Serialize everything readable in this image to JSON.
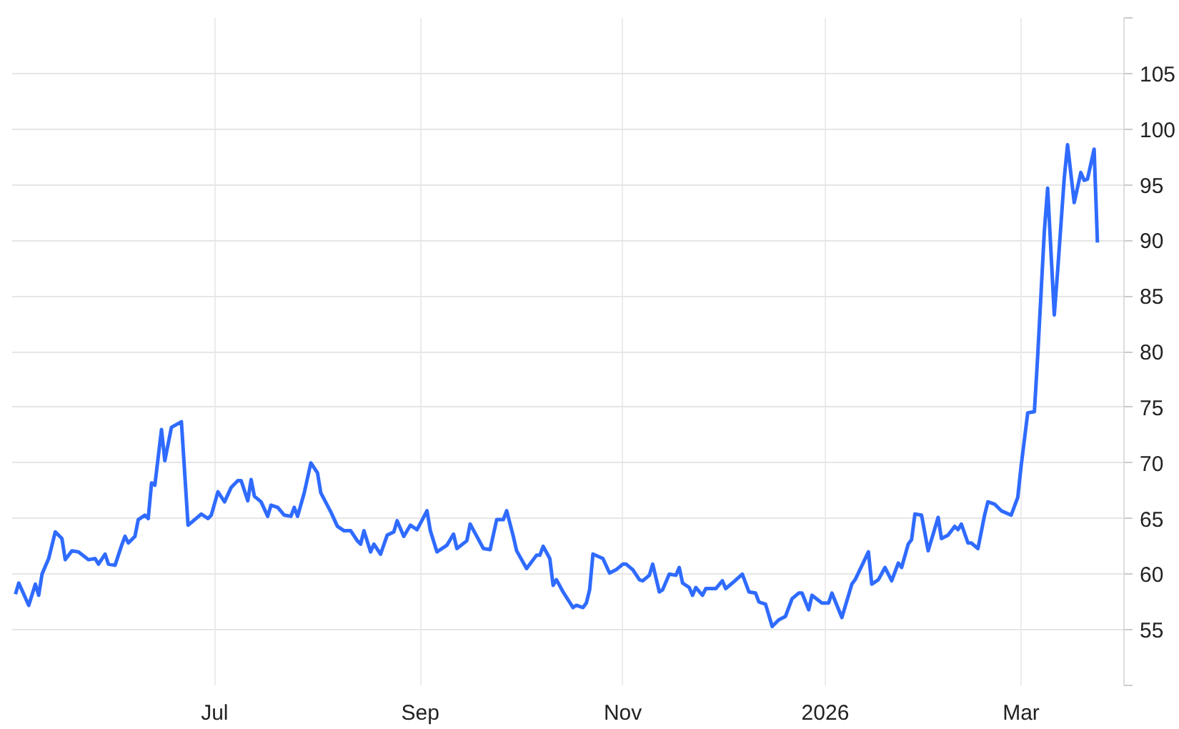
{
  "chart_data": {
    "type": "line",
    "grid": true,
    "line_style": "solid",
    "xlim": [
      "2025-05-01",
      "2026-04-01"
    ],
    "xticks": [
      {
        "value": "2025-07-01",
        "label": "Jul"
      },
      {
        "value": "2025-09-01",
        "label": "Sep"
      },
      {
        "value": "2025-11-01",
        "label": "Nov"
      },
      {
        "value": "2026-01-01",
        "label": "2026"
      },
      {
        "value": "2026-03-01",
        "label": "Mar"
      }
    ],
    "ylim": [
      50,
      110
    ],
    "yticks": [
      {
        "value": 50,
        "label": null
      },
      55,
      60,
      65,
      70,
      75,
      80,
      85,
      90,
      95,
      100,
      105,
      {
        "value": 110,
        "label": null
      }
    ],
    "x": [
      "2025-05-02",
      "2025-05-03",
      "2025-05-06",
      "2025-05-08",
      "2025-05-09",
      "2025-05-10",
      "2025-05-12",
      "2025-05-14",
      "2025-05-16",
      "2025-05-17",
      "2025-05-19",
      "2025-05-21",
      "2025-05-24",
      "2025-05-26",
      "2025-05-27",
      "2025-05-29",
      "2025-05-30",
      "2025-06-01",
      "2025-06-03",
      "2025-06-04",
      "2025-06-05",
      "2025-06-07",
      "2025-06-08",
      "2025-06-10",
      "2025-06-11",
      "2025-06-12",
      "2025-06-13",
      "2025-06-15",
      "2025-06-16",
      "2025-06-18",
      "2025-06-21",
      "2025-06-23",
      "2025-06-25",
      "2025-06-27",
      "2025-06-29",
      "2025-06-30",
      "2025-07-02",
      "2025-07-04",
      "2025-07-06",
      "2025-07-08",
      "2025-07-09",
      "2025-07-11",
      "2025-07-12",
      "2025-07-13",
      "2025-07-15",
      "2025-07-17",
      "2025-07-18",
      "2025-07-20",
      "2025-07-22",
      "2025-07-24",
      "2025-07-25",
      "2025-07-26",
      "2025-07-28",
      "2025-07-30",
      "2025-08-01",
      "2025-08-02",
      "2025-08-05",
      "2025-08-07",
      "2025-08-09",
      "2025-08-11",
      "2025-08-13",
      "2025-08-14",
      "2025-08-15",
      "2025-08-17",
      "2025-08-18",
      "2025-08-20",
      "2025-08-22",
      "2025-08-24",
      "2025-08-25",
      "2025-08-27",
      "2025-08-29",
      "2025-08-31",
      "2025-09-03",
      "2025-09-04",
      "2025-09-06",
      "2025-09-09",
      "2025-09-11",
      "2025-09-12",
      "2025-09-15",
      "2025-09-16",
      "2025-09-18",
      "2025-09-20",
      "2025-09-22",
      "2025-09-24",
      "2025-09-26",
      "2025-09-27",
      "2025-09-29",
      "2025-09-30",
      "2025-10-03",
      "2025-10-06",
      "2025-10-07",
      "2025-10-08",
      "2025-10-10",
      "2025-10-11",
      "2025-10-12",
      "2025-10-14",
      "2025-10-17",
      "2025-10-18",
      "2025-10-20",
      "2025-10-21",
      "2025-10-22",
      "2025-10-23",
      "2025-10-26",
      "2025-10-28",
      "2025-10-30",
      "2025-11-01",
      "2025-11-02",
      "2025-11-04",
      "2025-11-06",
      "2025-11-07",
      "2025-11-09",
      "2025-11-10",
      "2025-11-12",
      "2025-11-13",
      "2025-11-15",
      "2025-11-17",
      "2025-11-18",
      "2025-11-19",
      "2025-11-21",
      "2025-11-22",
      "2025-11-23",
      "2025-11-25",
      "2025-11-26",
      "2025-11-29",
      "2025-12-01",
      "2025-12-02",
      "2025-12-04",
      "2025-12-07",
      "2025-12-09",
      "2025-12-11",
      "2025-12-12",
      "2025-12-14",
      "2025-12-16",
      "2025-12-18",
      "2025-12-20",
      "2025-12-22",
      "2025-12-24",
      "2025-12-25",
      "2025-12-27",
      "2025-12-28",
      "2025-12-31",
      "2026-01-02",
      "2026-01-03",
      "2026-01-06",
      "2026-01-09",
      "2026-01-10",
      "2026-01-14",
      "2026-01-15",
      "2026-01-17",
      "2026-01-19",
      "2026-01-21",
      "2026-01-23",
      "2026-01-24",
      "2026-01-26",
      "2026-01-27",
      "2026-01-28",
      "2026-01-30",
      "2026-02-01",
      "2026-02-04",
      "2026-02-05",
      "2026-02-07",
      "2026-02-09",
      "2026-02-10",
      "2026-02-11",
      "2026-02-13",
      "2026-02-14",
      "2026-02-16",
      "2026-02-18",
      "2026-02-19",
      "2026-02-21",
      "2026-02-23",
      "2026-02-26",
      "2026-02-28",
      "2026-03-01",
      "2026-03-03",
      "2026-03-05",
      "2026-03-06",
      "2026-03-08",
      "2026-03-09",
      "2026-03-11",
      "2026-03-12",
      "2026-03-14",
      "2026-03-15",
      "2026-03-17",
      "2026-03-19",
      "2026-03-20",
      "2026-03-21",
      "2026-03-23",
      "2026-03-24"
    ],
    "series": [
      {
        "color": "#2f6bff",
        "values": [
          58.2,
          59.2,
          57.2,
          59.1,
          58.1,
          60.0,
          61.4,
          63.8,
          63.2,
          61.3,
          62.1,
          62.0,
          61.3,
          61.4,
          60.9,
          61.8,
          60.9,
          60.8,
          62.6,
          63.4,
          62.8,
          63.4,
          64.9,
          65.3,
          65.0,
          68.2,
          68.0,
          73.0,
          70.2,
          73.2,
          73.7,
          64.4,
          64.9,
          65.4,
          65.0,
          65.3,
          67.4,
          66.5,
          67.8,
          68.4,
          68.4,
          66.6,
          68.5,
          67.0,
          66.5,
          65.2,
          66.2,
          66.0,
          65.3,
          65.2,
          66.0,
          65.2,
          67.3,
          70.0,
          69.1,
          67.3,
          65.6,
          64.3,
          63.9,
          63.9,
          63.0,
          62.7,
          63.9,
          62.0,
          62.7,
          61.8,
          63.5,
          63.8,
          64.8,
          63.4,
          64.4,
          64.0,
          65.7,
          63.9,
          62.0,
          62.6,
          63.6,
          62.3,
          63.0,
          64.5,
          63.4,
          62.3,
          62.2,
          64.9,
          64.9,
          65.7,
          63.4,
          62.1,
          60.5,
          61.7,
          61.7,
          62.5,
          61.4,
          59.0,
          59.5,
          58.4,
          57.0,
          57.2,
          57.0,
          57.4,
          58.6,
          61.8,
          61.4,
          60.1,
          60.4,
          60.9,
          60.9,
          60.4,
          59.5,
          59.4,
          59.9,
          60.9,
          58.4,
          58.6,
          60.0,
          59.9,
          60.6,
          59.2,
          58.8,
          58.1,
          58.8,
          58.1,
          58.7,
          58.7,
          59.4,
          58.7,
          59.2,
          60.0,
          58.4,
          58.3,
          57.5,
          57.3,
          55.3,
          55.9,
          56.2,
          57.8,
          58.3,
          58.3,
          56.8,
          58.1,
          57.4,
          57.4,
          58.3,
          56.1,
          59.1,
          59.5,
          62.0,
          59.1,
          59.5,
          60.6,
          59.4,
          61.0,
          60.6,
          62.7,
          63.1,
          65.4,
          65.3,
          62.1,
          65.1,
          63.2,
          63.5,
          64.3,
          64.0,
          64.5,
          62.8,
          62.8,
          62.3,
          65.3,
          66.5,
          66.3,
          65.7,
          65.3,
          66.9,
          69.7,
          74.5,
          74.6,
          79.6,
          90.8,
          94.7,
          83.3,
          87.2,
          95.6,
          98.6,
          93.4,
          96.1,
          95.4,
          95.5,
          98.2,
          89.8
        ]
      }
    ]
  }
}
